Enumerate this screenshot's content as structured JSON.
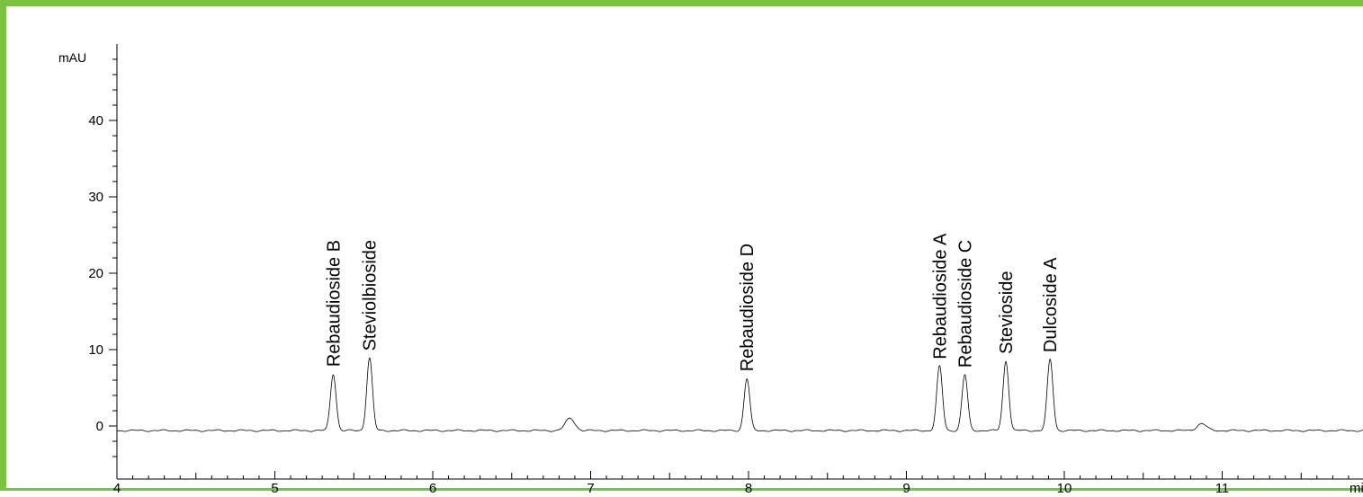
{
  "chart_data": {
    "type": "line",
    "title": "",
    "xlabel": "min",
    "ylabel": "mAU",
    "xlim": [
      4,
      12.1
    ],
    "ylim": [
      -5,
      50
    ],
    "x_ticks": [
      4,
      5,
      6,
      7,
      8,
      9,
      10,
      11
    ],
    "y_ticks": [
      0,
      10,
      20,
      30,
      40
    ],
    "grid": false,
    "legend": "none",
    "baseline": -0.6,
    "peaks": [
      {
        "name": "Rebaudioside B",
        "rt": 5.37,
        "height": 7.4
      },
      {
        "name": "Steviolbioside",
        "rt": 5.6,
        "height": 9.5
      },
      {
        "name": "",
        "rt": 6.87,
        "height": 1.6
      },
      {
        "name": "Rebaudioside D",
        "rt": 7.99,
        "height": 6.8
      },
      {
        "name": "Rebaudioside A",
        "rt": 9.21,
        "height": 8.4
      },
      {
        "name": "Rebaudioside C",
        "rt": 9.37,
        "height": 7.3
      },
      {
        "name": "Stevioside",
        "rt": 9.63,
        "height": 9.1
      },
      {
        "name": "Dulcoside A",
        "rt": 9.91,
        "height": 9.3
      },
      {
        "name": "",
        "rt": 10.87,
        "height": 0.9
      }
    ],
    "colors": {
      "trace": "#000000",
      "axis": "#000000",
      "frame": "#7cc242"
    }
  }
}
